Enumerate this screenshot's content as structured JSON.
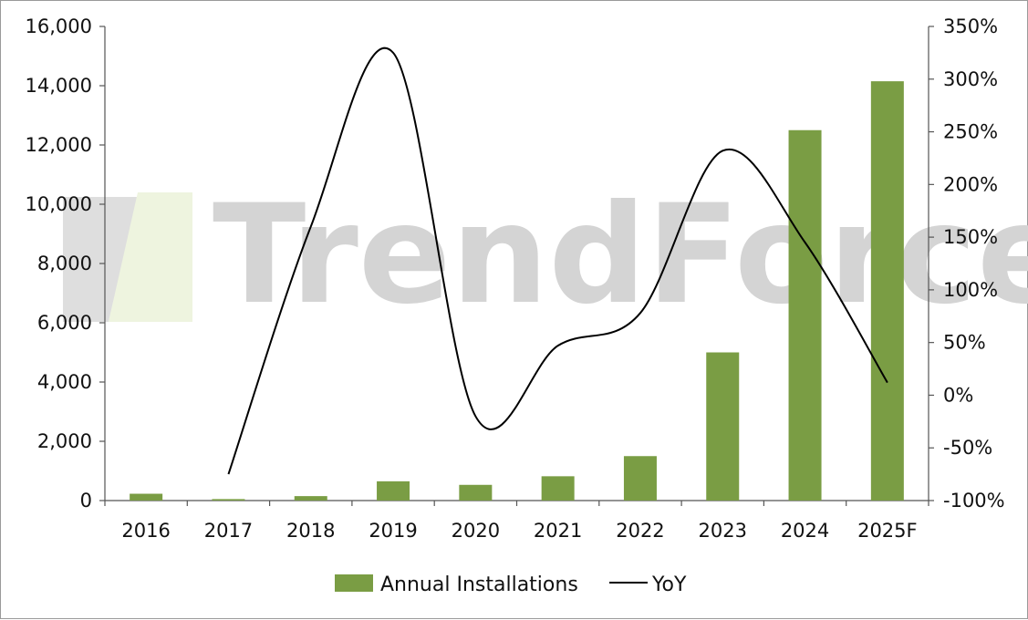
{
  "watermark": {
    "text": "TrendForce"
  },
  "chart_data": {
    "type": "bar",
    "categories": [
      "2016",
      "2017",
      "2018",
      "2019",
      "2020",
      "2021",
      "2022",
      "2023",
      "2024",
      "2025F"
    ],
    "series": [
      {
        "name": "Annual Installations",
        "type": "bar",
        "axis": "left",
        "color": "#7a9d44",
        "values": [
          230,
          50,
          150,
          650,
          530,
          820,
          1500,
          5000,
          12500,
          14150
        ]
      },
      {
        "name": "YoY",
        "type": "line",
        "axis": "right",
        "color": "#000000",
        "values": [
          null,
          -75,
          160,
          325,
          -20,
          47,
          78,
          232,
          145,
          12
        ]
      }
    ],
    "y_left": {
      "min": 0,
      "max": 16000,
      "ticks": [
        0,
        2000,
        4000,
        6000,
        8000,
        10000,
        12000,
        14000,
        16000
      ],
      "tick_labels": [
        "0",
        "2,000",
        "4,000",
        "6,000",
        "8,000",
        "10,000",
        "12,000",
        "14,000",
        "16,000"
      ]
    },
    "y_right": {
      "min": -100,
      "max": 350,
      "ticks": [
        -100,
        -50,
        0,
        50,
        100,
        150,
        200,
        250,
        300,
        350
      ],
      "tick_labels": [
        "-100%",
        "-50%",
        "0%",
        "50%",
        "100%",
        "150%",
        "200%",
        "250%",
        "300%",
        "350%"
      ]
    },
    "title": "",
    "xlabel": "",
    "ylabel": "",
    "grid": false,
    "legend": "bottom"
  }
}
